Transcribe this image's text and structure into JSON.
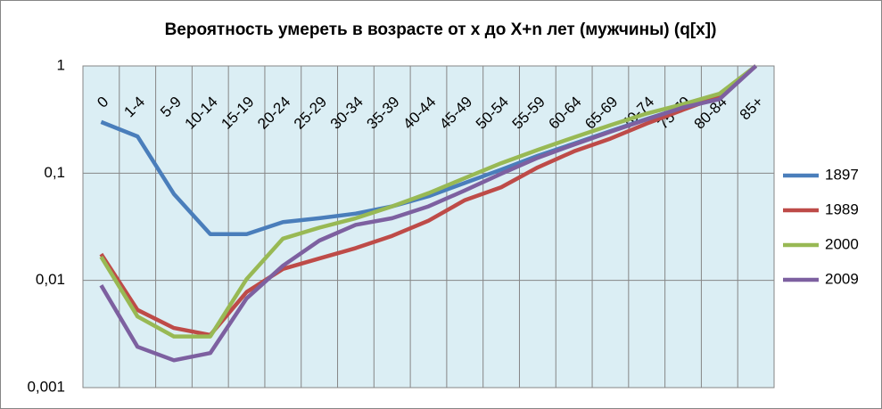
{
  "chart_data": {
    "type": "line",
    "title": "Вероятность умереть в возрасте от x до X+n лет (мужчины) (q[x])",
    "categories": [
      "0",
      "1-4",
      "5-9",
      "10-14",
      "15-19",
      "20-24",
      "25-29",
      "30-34",
      "35-39",
      "40-44",
      "45-49",
      "50-54",
      "55-59",
      "60-64",
      "65-69",
      "70-74",
      "75-79",
      "80-84",
      "85+"
    ],
    "series": [
      {
        "name": "1897",
        "color": "#4a7ebb",
        "values": [
          0.3,
          0.22,
          0.064,
          0.027,
          0.027,
          0.035,
          0.038,
          0.042,
          0.049,
          0.061,
          0.081,
          0.108,
          0.145,
          0.189,
          0.247,
          0.32,
          0.41,
          0.54,
          1
        ]
      },
      {
        "name": "1989",
        "color": "#be4b48",
        "values": [
          0.0176,
          0.0053,
          0.0036,
          0.0031,
          0.0078,
          0.0128,
          0.016,
          0.02,
          0.026,
          0.036,
          0.056,
          0.074,
          0.113,
          0.16,
          0.21,
          0.29,
          0.39,
          0.52,
          1
        ]
      },
      {
        "name": "2000",
        "color": "#98b954",
        "values": [
          0.0166,
          0.0046,
          0.003,
          0.003,
          0.0103,
          0.0245,
          0.031,
          0.038,
          0.049,
          0.065,
          0.09,
          0.124,
          0.165,
          0.216,
          0.28,
          0.36,
          0.44,
          0.55,
          1
        ]
      },
      {
        "name": "2009",
        "color": "#7d60a0",
        "values": [
          0.009,
          0.0024,
          0.0018,
          0.0021,
          0.0068,
          0.0137,
          0.0235,
          0.033,
          0.038,
          0.049,
          0.069,
          0.099,
          0.139,
          0.185,
          0.243,
          0.317,
          0.41,
          0.49,
          1
        ]
      }
    ],
    "ylim": [
      0.001,
      1
    ],
    "yticks": [
      {
        "value": 0.001,
        "label": "0,001"
      },
      {
        "value": 0.01,
        "label": "0,01"
      },
      {
        "value": 0.1,
        "label": "0,1"
      },
      1
    ],
    "log_scale": true,
    "grid": true,
    "legend": "right"
  }
}
